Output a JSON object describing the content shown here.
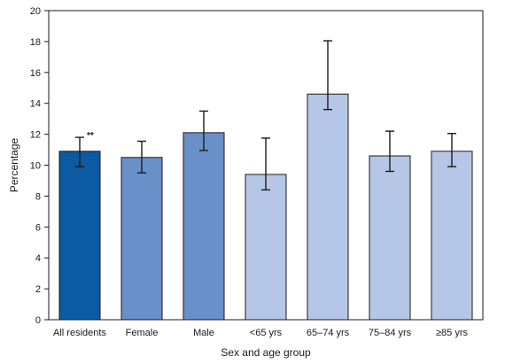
{
  "chart_data": {
    "type": "bar",
    "categories": [
      "All residents",
      "Female",
      "Male",
      "<65 yrs",
      "65–74 yrs",
      "75–84 yrs",
      "≥85 yrs"
    ],
    "values": [
      10.9,
      10.5,
      12.1,
      9.4,
      14.6,
      10.6,
      10.9
    ],
    "error_low": [
      9.9,
      9.5,
      10.95,
      8.4,
      13.6,
      9.6,
      9.9
    ],
    "error_high": [
      11.8,
      11.55,
      13.5,
      11.75,
      18.05,
      12.2,
      12.05
    ],
    "bar_colors": [
      "#0b5aa2",
      "#6a90c9",
      "#6a90c9",
      "#b6c6e6",
      "#b6c6e6",
      "#b6c6e6",
      "#b6c6e6"
    ],
    "annotations": [
      {
        "category": "All residents",
        "text": "**"
      }
    ],
    "xlabel": "Sex and age group",
    "ylabel": "Percentage",
    "ylim": [
      0,
      20
    ],
    "yticks": [
      0,
      2,
      4,
      6,
      8,
      10,
      12,
      14,
      16,
      18,
      20
    ],
    "grid": false,
    "legend": "none"
  }
}
